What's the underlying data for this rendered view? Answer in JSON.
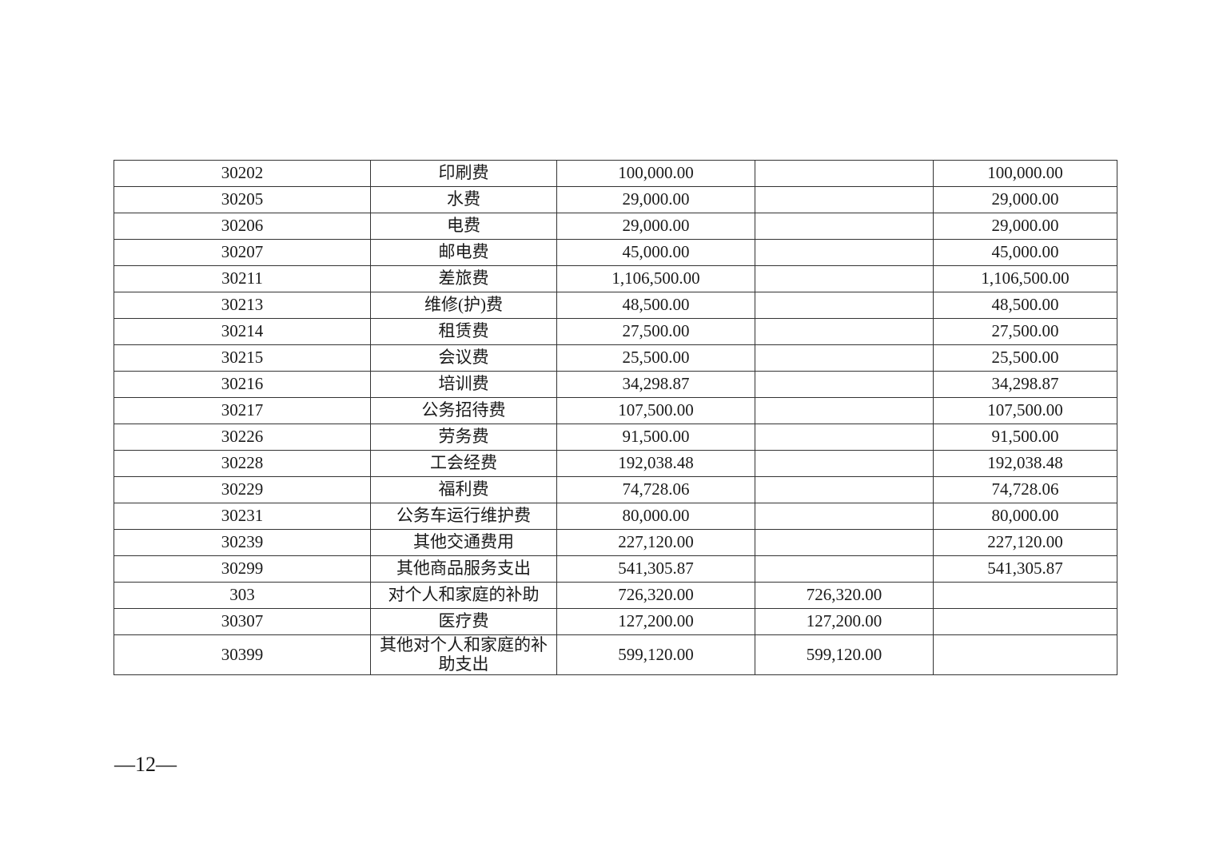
{
  "page": {
    "page_number": "—12—"
  },
  "table": {
    "border_color": "#333333",
    "rows": [
      [
        "30202",
        "印刷费",
        "100,000.00",
        "",
        "100,000.00"
      ],
      [
        "30205",
        "水费",
        "29,000.00",
        "",
        "29,000.00"
      ],
      [
        "30206",
        "电费",
        "29,000.00",
        "",
        "29,000.00"
      ],
      [
        "30207",
        "邮电费",
        "45,000.00",
        "",
        "45,000.00"
      ],
      [
        "30211",
        "差旅费",
        "1,106,500.00",
        "",
        "1,106,500.00"
      ],
      [
        "30213",
        "维修(护)费",
        "48,500.00",
        "",
        "48,500.00"
      ],
      [
        "30214",
        "租赁费",
        "27,500.00",
        "",
        "27,500.00"
      ],
      [
        "30215",
        "会议费",
        "25,500.00",
        "",
        "25,500.00"
      ],
      [
        "30216",
        "培训费",
        "34,298.87",
        "",
        "34,298.87"
      ],
      [
        "30217",
        "公务招待费",
        "107,500.00",
        "",
        "107,500.00"
      ],
      [
        "30226",
        "劳务费",
        "91,500.00",
        "",
        "91,500.00"
      ],
      [
        "30228",
        "工会经费",
        "192,038.48",
        "",
        "192,038.48"
      ],
      [
        "30229",
        "福利费",
        "74,728.06",
        "",
        "74,728.06"
      ],
      [
        "30231",
        "公务车运行维护费",
        "80,000.00",
        "",
        "80,000.00"
      ],
      [
        "30239",
        "其他交通费用",
        "227,120.00",
        "",
        "227,120.00"
      ],
      [
        "30299",
        "其他商品服务支出",
        "541,305.87",
        "",
        "541,305.87"
      ],
      [
        "303",
        "对个人和家庭的补助",
        "726,320.00",
        "726,320.00",
        ""
      ],
      [
        "30307",
        "医疗费",
        "127,200.00",
        "127,200.00",
        ""
      ],
      [
        "30399",
        "其他对个人和家庭的补助支出",
        "599,120.00",
        "599,120.00",
        ""
      ]
    ]
  }
}
